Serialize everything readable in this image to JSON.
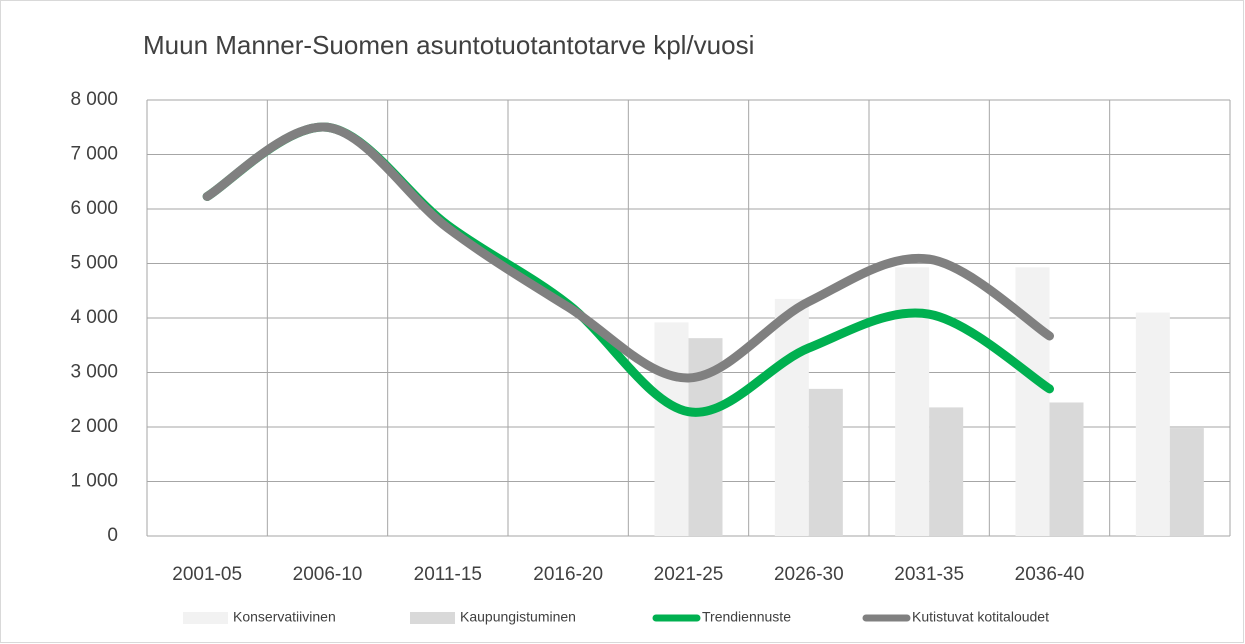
{
  "chart_data": {
    "type": "bar",
    "title": "Muun Manner-Suomen asuntotuotantotarve kpl/vuosi",
    "categories": [
      "2001-05",
      "2006-10",
      "2011-15",
      "2016-20",
      "2021-25",
      "2026-30",
      "2031-35",
      "2036-40",
      null
    ],
    "series": [
      {
        "name": "Konservatiivinen",
        "type": "bar",
        "color": "#f2f2f2",
        "values": [
          null,
          null,
          null,
          null,
          3920,
          4350,
          4930,
          4930,
          4100
        ]
      },
      {
        "name": "Kaupungistuminen",
        "type": "bar",
        "color": "#d9d9d9",
        "values": [
          null,
          null,
          null,
          null,
          3630,
          2700,
          2360,
          2450,
          1980
        ]
      },
      {
        "name": "Trendiennuste",
        "type": "line",
        "color": "#00b050",
        "values": [
          6230,
          7500,
          5700,
          4250,
          2280,
          3450,
          4070,
          2700,
          null
        ]
      },
      {
        "name": "Kutistuvat kotitaloudet",
        "type": "line",
        "color": "#808080",
        "values": [
          6230,
          7500,
          5650,
          4200,
          2900,
          4300,
          5080,
          3670,
          null
        ]
      }
    ],
    "ylim": [
      0,
      8000
    ],
    "yticks": [
      0,
      {
        "value": 1000,
        "label": "1 000"
      },
      {
        "value": 2000,
        "label": "2 000"
      },
      {
        "value": 3000,
        "label": "3 000"
      },
      {
        "value": 4000,
        "label": "4 000"
      },
      {
        "value": 5000,
        "label": "5 000"
      },
      {
        "value": 6000,
        "label": "6 000"
      },
      {
        "value": 7000,
        "label": "7 000"
      },
      {
        "value": 8000,
        "label": "8 000"
      }
    ],
    "grid": true,
    "legend": "bottom"
  }
}
